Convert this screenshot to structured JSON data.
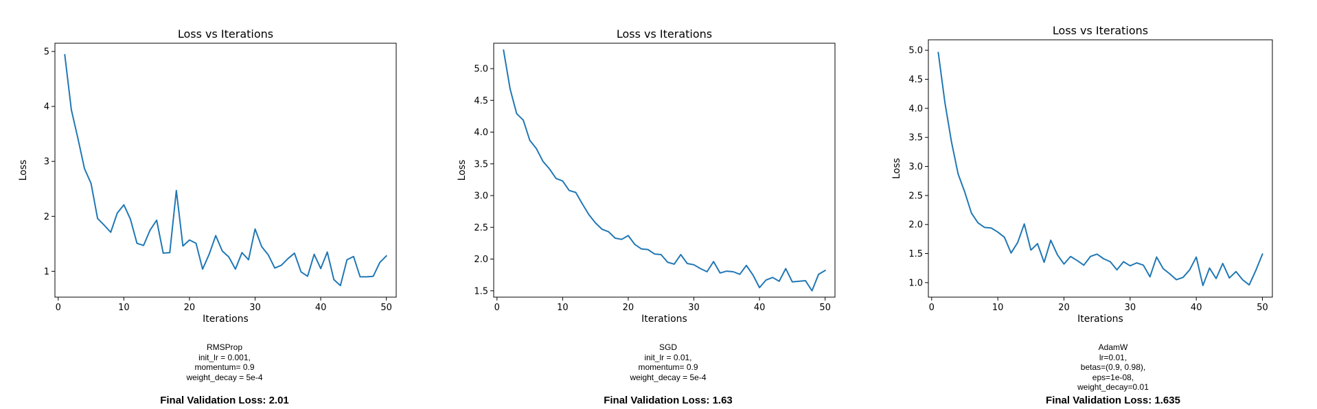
{
  "chart_data": [
    {
      "type": "line",
      "title": "Loss vs Iterations",
      "xlabel": "Iterations",
      "ylabel": "Loss",
      "xlim": [
        -0.5,
        51.5
      ],
      "ylim": [
        0.53,
        5.15
      ],
      "xticks": [
        0,
        10,
        20,
        30,
        40,
        50
      ],
      "xtick_labels": [
        "0",
        "10",
        "20",
        "30",
        "40",
        "50"
      ],
      "yticks": [
        1,
        2,
        3,
        4,
        5
      ],
      "ytick_labels": [
        "1",
        "2",
        "3",
        "4",
        "5"
      ],
      "color": "#1f77b4",
      "grid": false,
      "x": [
        1,
        2,
        3,
        4,
        5,
        6,
        7,
        8,
        9,
        10,
        11,
        12,
        13,
        14,
        15,
        16,
        17,
        18,
        19,
        20,
        21,
        22,
        23,
        24,
        25,
        26,
        27,
        28,
        29,
        30,
        31,
        32,
        33,
        34,
        35,
        36,
        37,
        38,
        39,
        40,
        41,
        42,
        43,
        44,
        45,
        46,
        47,
        48,
        49,
        50
      ],
      "y": [
        4.94,
        3.94,
        3.42,
        2.87,
        2.6,
        1.96,
        1.84,
        1.71,
        2.06,
        2.21,
        1.95,
        1.51,
        1.47,
        1.75,
        1.93,
        1.33,
        1.34,
        2.47,
        1.46,
        1.57,
        1.51,
        1.04,
        1.31,
        1.65,
        1.37,
        1.26,
        1.04,
        1.34,
        1.21,
        1.77,
        1.45,
        1.3,
        1.06,
        1.11,
        1.23,
        1.33,
        0.99,
        0.91,
        1.31,
        1.05,
        1.35,
        0.85,
        0.74,
        1.21,
        1.27,
        0.9,
        0.9,
        0.91,
        1.16,
        1.28
      ]
    },
    {
      "type": "line",
      "title": "Loss vs Iterations",
      "xlabel": "Iterations",
      "ylabel": "Loss",
      "xlim": [
        -0.5,
        51.5
      ],
      "ylim": [
        1.4,
        5.4
      ],
      "xticks": [
        0,
        10,
        20,
        30,
        40,
        50
      ],
      "xtick_labels": [
        "0",
        "10",
        "20",
        "30",
        "40",
        "50"
      ],
      "yticks": [
        1.5,
        2.0,
        2.5,
        3.0,
        3.5,
        4.0,
        4.5,
        5.0
      ],
      "ytick_labels": [
        "1.5",
        "2.0",
        "2.5",
        "3.0",
        "3.5",
        "4.0",
        "4.5",
        "5.0"
      ],
      "color": "#1f77b4",
      "grid": false,
      "x": [
        1,
        2,
        3,
        4,
        5,
        6,
        7,
        8,
        9,
        10,
        11,
        12,
        13,
        14,
        15,
        16,
        17,
        18,
        19,
        20,
        21,
        22,
        23,
        24,
        25,
        26,
        27,
        28,
        29,
        30,
        31,
        32,
        33,
        34,
        35,
        36,
        37,
        38,
        39,
        40,
        41,
        42,
        43,
        44,
        45,
        46,
        47,
        48,
        49,
        50
      ],
      "y": [
        5.29,
        4.68,
        4.29,
        4.19,
        3.87,
        3.74,
        3.54,
        3.42,
        3.27,
        3.23,
        3.08,
        3.05,
        2.87,
        2.7,
        2.57,
        2.47,
        2.43,
        2.33,
        2.31,
        2.37,
        2.23,
        2.16,
        2.15,
        2.08,
        2.07,
        1.95,
        1.92,
        2.07,
        1.93,
        1.91,
        1.85,
        1.8,
        1.96,
        1.78,
        1.81,
        1.8,
        1.76,
        1.9,
        1.75,
        1.55,
        1.67,
        1.71,
        1.65,
        1.85,
        1.64,
        1.65,
        1.66,
        1.5,
        1.76,
        1.82
      ]
    },
    {
      "type": "line",
      "title": "Loss vs Iterations",
      "xlabel": "Iterations",
      "ylabel": "Loss",
      "xlim": [
        -0.5,
        51.5
      ],
      "ylim": [
        0.75,
        5.18
      ],
      "xticks": [
        0,
        10,
        20,
        30,
        40,
        50
      ],
      "xtick_labels": [
        "0",
        "10",
        "20",
        "30",
        "40",
        "50"
      ],
      "yticks": [
        1.0,
        1.5,
        2.0,
        2.5,
        3.0,
        3.5,
        4.0,
        4.5,
        5.0
      ],
      "ytick_labels": [
        "1.0",
        "1.5",
        "2.0",
        "2.5",
        "3.0",
        "3.5",
        "4.0",
        "4.5",
        "5.0"
      ],
      "color": "#1f77b4",
      "grid": false,
      "x": [
        1,
        2,
        3,
        4,
        5,
        6,
        7,
        8,
        9,
        10,
        11,
        12,
        13,
        14,
        15,
        16,
        17,
        18,
        19,
        20,
        21,
        22,
        23,
        24,
        25,
        26,
        27,
        28,
        29,
        30,
        31,
        32,
        33,
        34,
        35,
        36,
        37,
        38,
        39,
        40,
        41,
        42,
        43,
        44,
        45,
        46,
        47,
        48,
        49,
        50
      ],
      "y": [
        4.96,
        4.1,
        3.42,
        2.87,
        2.56,
        2.2,
        2.03,
        1.95,
        1.94,
        1.87,
        1.78,
        1.51,
        1.69,
        2.01,
        1.56,
        1.67,
        1.35,
        1.73,
        1.48,
        1.32,
        1.45,
        1.38,
        1.3,
        1.45,
        1.49,
        1.41,
        1.36,
        1.22,
        1.36,
        1.29,
        1.34,
        1.3,
        1.1,
        1.44,
        1.24,
        1.15,
        1.05,
        1.09,
        1.22,
        1.44,
        0.95,
        1.25,
        1.07,
        1.33,
        1.08,
        1.19,
        1.05,
        0.96,
        1.21,
        1.49
      ]
    }
  ],
  "captions": [
    {
      "lines": [
        "RMSProp",
        "init_lr = 0.001,",
        "momentum= 0.9",
        "weight_decay = 5e-4"
      ],
      "final": "Final Validation Loss: 2.01"
    },
    {
      "lines": [
        "SGD",
        "init_lr = 0.01,",
        "momentum= 0.9",
        "weight_decay = 5e-4"
      ],
      "final": "Final Validation Loss: 1.63"
    },
    {
      "lines": [
        "AdamW",
        "lr=0.01,",
        "betas=(0.9, 0.98),",
        "eps=1e-08,",
        "weight_decay=0.01"
      ],
      "final": "Final Validation Loss: 1.635"
    }
  ]
}
